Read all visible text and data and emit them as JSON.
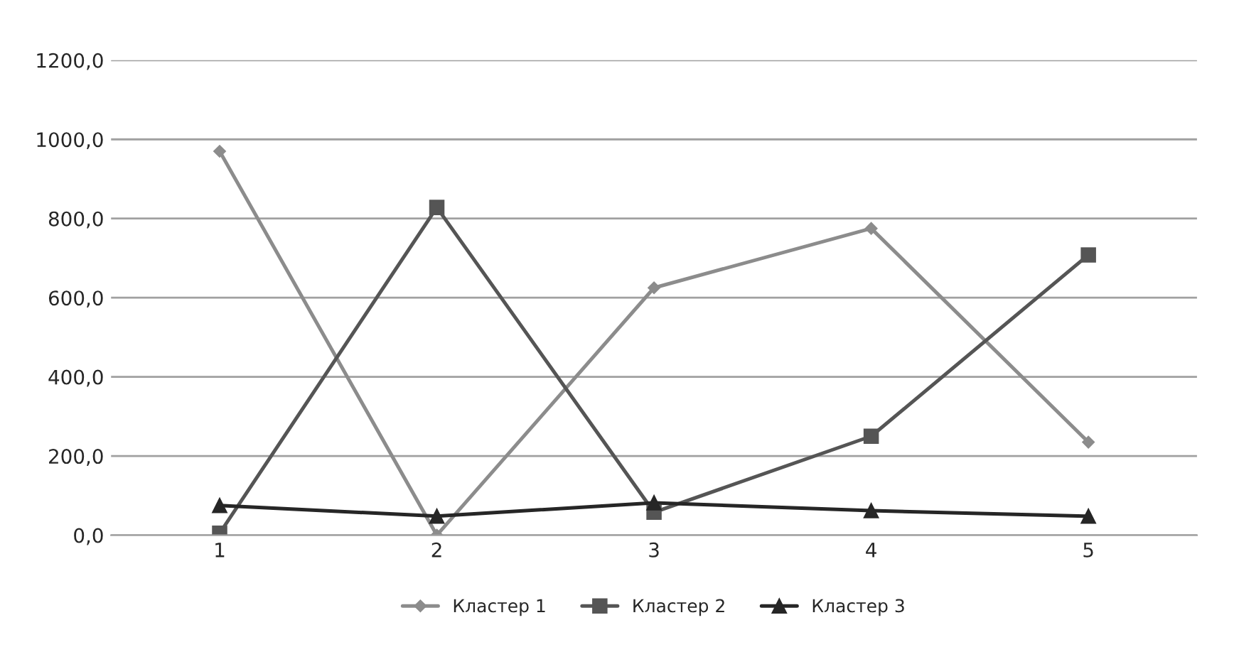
{
  "chart_data": {
    "type": "line",
    "categories": [
      "1",
      "2",
      "3",
      "4",
      "5"
    ],
    "series": [
      {
        "name": "Кластер 1",
        "color": "#8c8c8c",
        "marker": "diamond",
        "values": [
          970,
          0,
          625,
          775,
          235
        ]
      },
      {
        "name": "Кластер 2",
        "color": "#555555",
        "marker": "square",
        "values": [
          5,
          828,
          58,
          250,
          708
        ]
      },
      {
        "name": "Кластер 3",
        "color": "#262626",
        "marker": "triangle",
        "values": [
          75,
          48,
          82,
          62,
          48
        ]
      }
    ],
    "ylim": [
      0,
      1200
    ],
    "yticks": [
      {
        "value": 0,
        "label": "0,0"
      },
      {
        "value": 200,
        "label": "200,0"
      },
      {
        "value": 400,
        "label": "400,0"
      },
      {
        "value": 600,
        "label": "600,0"
      },
      {
        "value": 800,
        "label": "800,0"
      },
      {
        "value": 1000,
        "label": "1000,0"
      },
      {
        "value": 1200,
        "label": "1200,0"
      }
    ],
    "grid": "y",
    "legend": "bottom",
    "line_style": "solid"
  }
}
